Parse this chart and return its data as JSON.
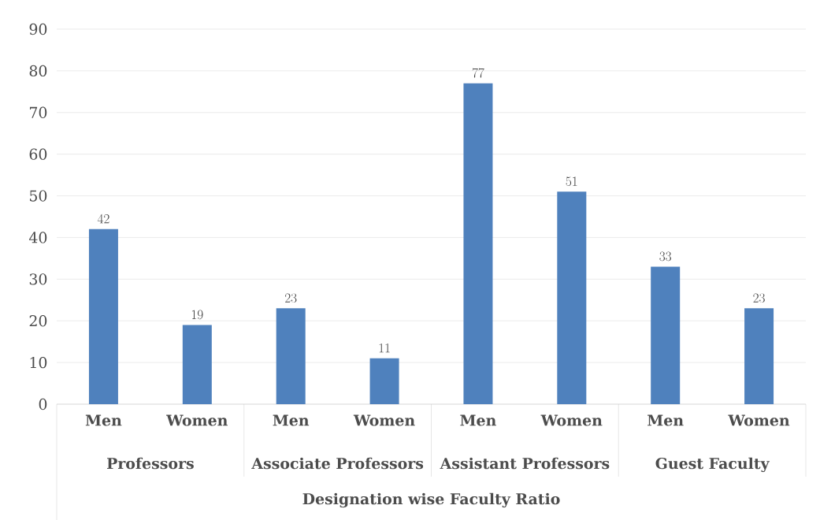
{
  "chart_data": {
    "type": "bar",
    "xlabel": "Designation wise Faculty Ratio",
    "categories": [
      "Men",
      "Women",
      "Men",
      "Women",
      "Men",
      "Women",
      "Men",
      "Women"
    ],
    "values": [
      42,
      19,
      23,
      11,
      77,
      51,
      33,
      23
    ],
    "color": "#4f81bd",
    "annotations": [
      "Professors",
      "Associate Professors",
      "Assistant Professors",
      "Guest Faculty"
    ],
    "ylim": [
      0,
      90
    ],
    "yticks": [
      0,
      10,
      20,
      30,
      40,
      50,
      60,
      70,
      80,
      90
    ],
    "grid": "y",
    "data_labels": true
  }
}
